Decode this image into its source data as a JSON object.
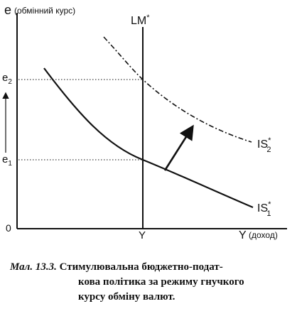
{
  "axes": {
    "y_label": "e",
    "y_label_note": "(обмінний курс)",
    "x_label": "Y",
    "x_label_note": "(доход)",
    "origin": "0"
  },
  "ticks": {
    "e2": {
      "base": "e",
      "sub": "2"
    },
    "e1": {
      "base": "e",
      "sub": "1"
    },
    "y": "Y"
  },
  "curves": {
    "lm": {
      "base": "LM",
      "sup": "*"
    },
    "is2": {
      "base": "IS",
      "sup": "*",
      "sub": "2"
    },
    "is1": {
      "base": "IS",
      "sup": "*",
      "sub": "1"
    }
  },
  "caption": {
    "prefix": "Мал. 13.3.",
    "line1": "Стимулювальна бюджетно-подат-",
    "line2": "кова політика за режиму гнучкого",
    "line3": "курсу обміну валют."
  },
  "colors": {
    "ink": "#111111"
  }
}
